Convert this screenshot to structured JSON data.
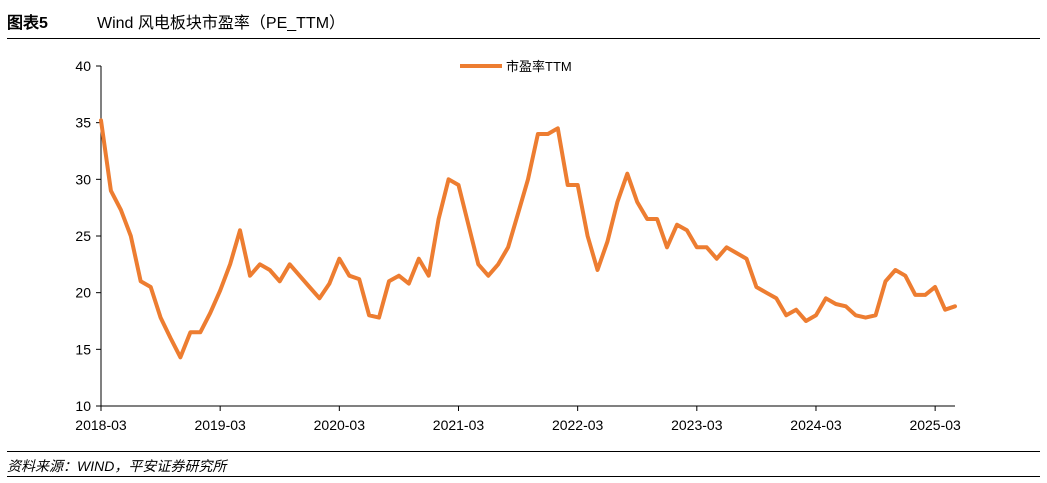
{
  "figure": {
    "number": "图表5",
    "title": "Wind 风电板块市盈率（PE_TTM）"
  },
  "source": "资料来源：WIND，平安证券研究所",
  "colors": {
    "series": "#ED7D31",
    "axis": "#000000"
  },
  "chart_data": {
    "type": "line",
    "title": "",
    "xlabel": "",
    "ylabel": "",
    "ylim": [
      10,
      40
    ],
    "yticks": [
      10,
      15,
      20,
      25,
      30,
      35,
      40
    ],
    "xticks": [
      "2018-03",
      "2019-03",
      "2020-03",
      "2021-03",
      "2022-03",
      "2023-03",
      "2024-03",
      "2025-03"
    ],
    "xlim": [
      "2018-03",
      "2025-05"
    ],
    "grid": false,
    "legend_position": "top-center",
    "series": [
      {
        "name": "市盈率TTM",
        "x": [
          "2018-03",
          "2018-04",
          "2018-05",
          "2018-06",
          "2018-07",
          "2018-08",
          "2018-09",
          "2018-10",
          "2018-11",
          "2018-12",
          "2019-01",
          "2019-02",
          "2019-03",
          "2019-04",
          "2019-05",
          "2019-06",
          "2019-07",
          "2019-08",
          "2019-09",
          "2019-10",
          "2019-11",
          "2019-12",
          "2020-01",
          "2020-02",
          "2020-03",
          "2020-04",
          "2020-05",
          "2020-06",
          "2020-07",
          "2020-08",
          "2020-09",
          "2020-10",
          "2020-11",
          "2020-12",
          "2021-01",
          "2021-02",
          "2021-03",
          "2021-04",
          "2021-05",
          "2021-06",
          "2021-07",
          "2021-08",
          "2021-09",
          "2021-10",
          "2021-11",
          "2021-12",
          "2022-01",
          "2022-02",
          "2022-03",
          "2022-04",
          "2022-05",
          "2022-06",
          "2022-07",
          "2022-08",
          "2022-09",
          "2022-10",
          "2022-11",
          "2022-12",
          "2023-01",
          "2023-02",
          "2023-03",
          "2023-04",
          "2023-05",
          "2023-06",
          "2023-07",
          "2023-08",
          "2023-09",
          "2023-10",
          "2023-11",
          "2023-12",
          "2024-01",
          "2024-02",
          "2024-03",
          "2024-04",
          "2024-05",
          "2024-06",
          "2024-07",
          "2024-08",
          "2024-09",
          "2024-10",
          "2024-11",
          "2024-12",
          "2025-01",
          "2025-02",
          "2025-03",
          "2025-04",
          "2025-05"
        ],
        "values": [
          35.2,
          29.0,
          27.3,
          25.0,
          21.0,
          20.5,
          17.8,
          16.0,
          14.3,
          16.5,
          16.5,
          18.2,
          20.2,
          22.5,
          25.5,
          21.5,
          22.5,
          22.0,
          21.0,
          22.5,
          21.5,
          20.5,
          19.5,
          20.8,
          23.0,
          21.5,
          21.2,
          18.0,
          17.8,
          21.0,
          21.5,
          20.8,
          23.0,
          21.5,
          26.5,
          30.0,
          29.5,
          26.0,
          22.5,
          21.5,
          22.5,
          24.0,
          27.0,
          30.0,
          34.0,
          34.0,
          34.5,
          29.5,
          29.5,
          25.0,
          22.0,
          24.5,
          28.0,
          30.5,
          28.0,
          26.5,
          26.5,
          24.0,
          26.0,
          25.5,
          24.0,
          24.0,
          23.0,
          24.0,
          23.5,
          23.0,
          20.5,
          20.0,
          19.5,
          18.0,
          18.5,
          17.5,
          18.0,
          19.5,
          19.0,
          18.8,
          18.0,
          17.8,
          18.0,
          21.0,
          22.0,
          21.5,
          19.8,
          19.8,
          20.5,
          18.5,
          18.8
        ]
      }
    ]
  }
}
